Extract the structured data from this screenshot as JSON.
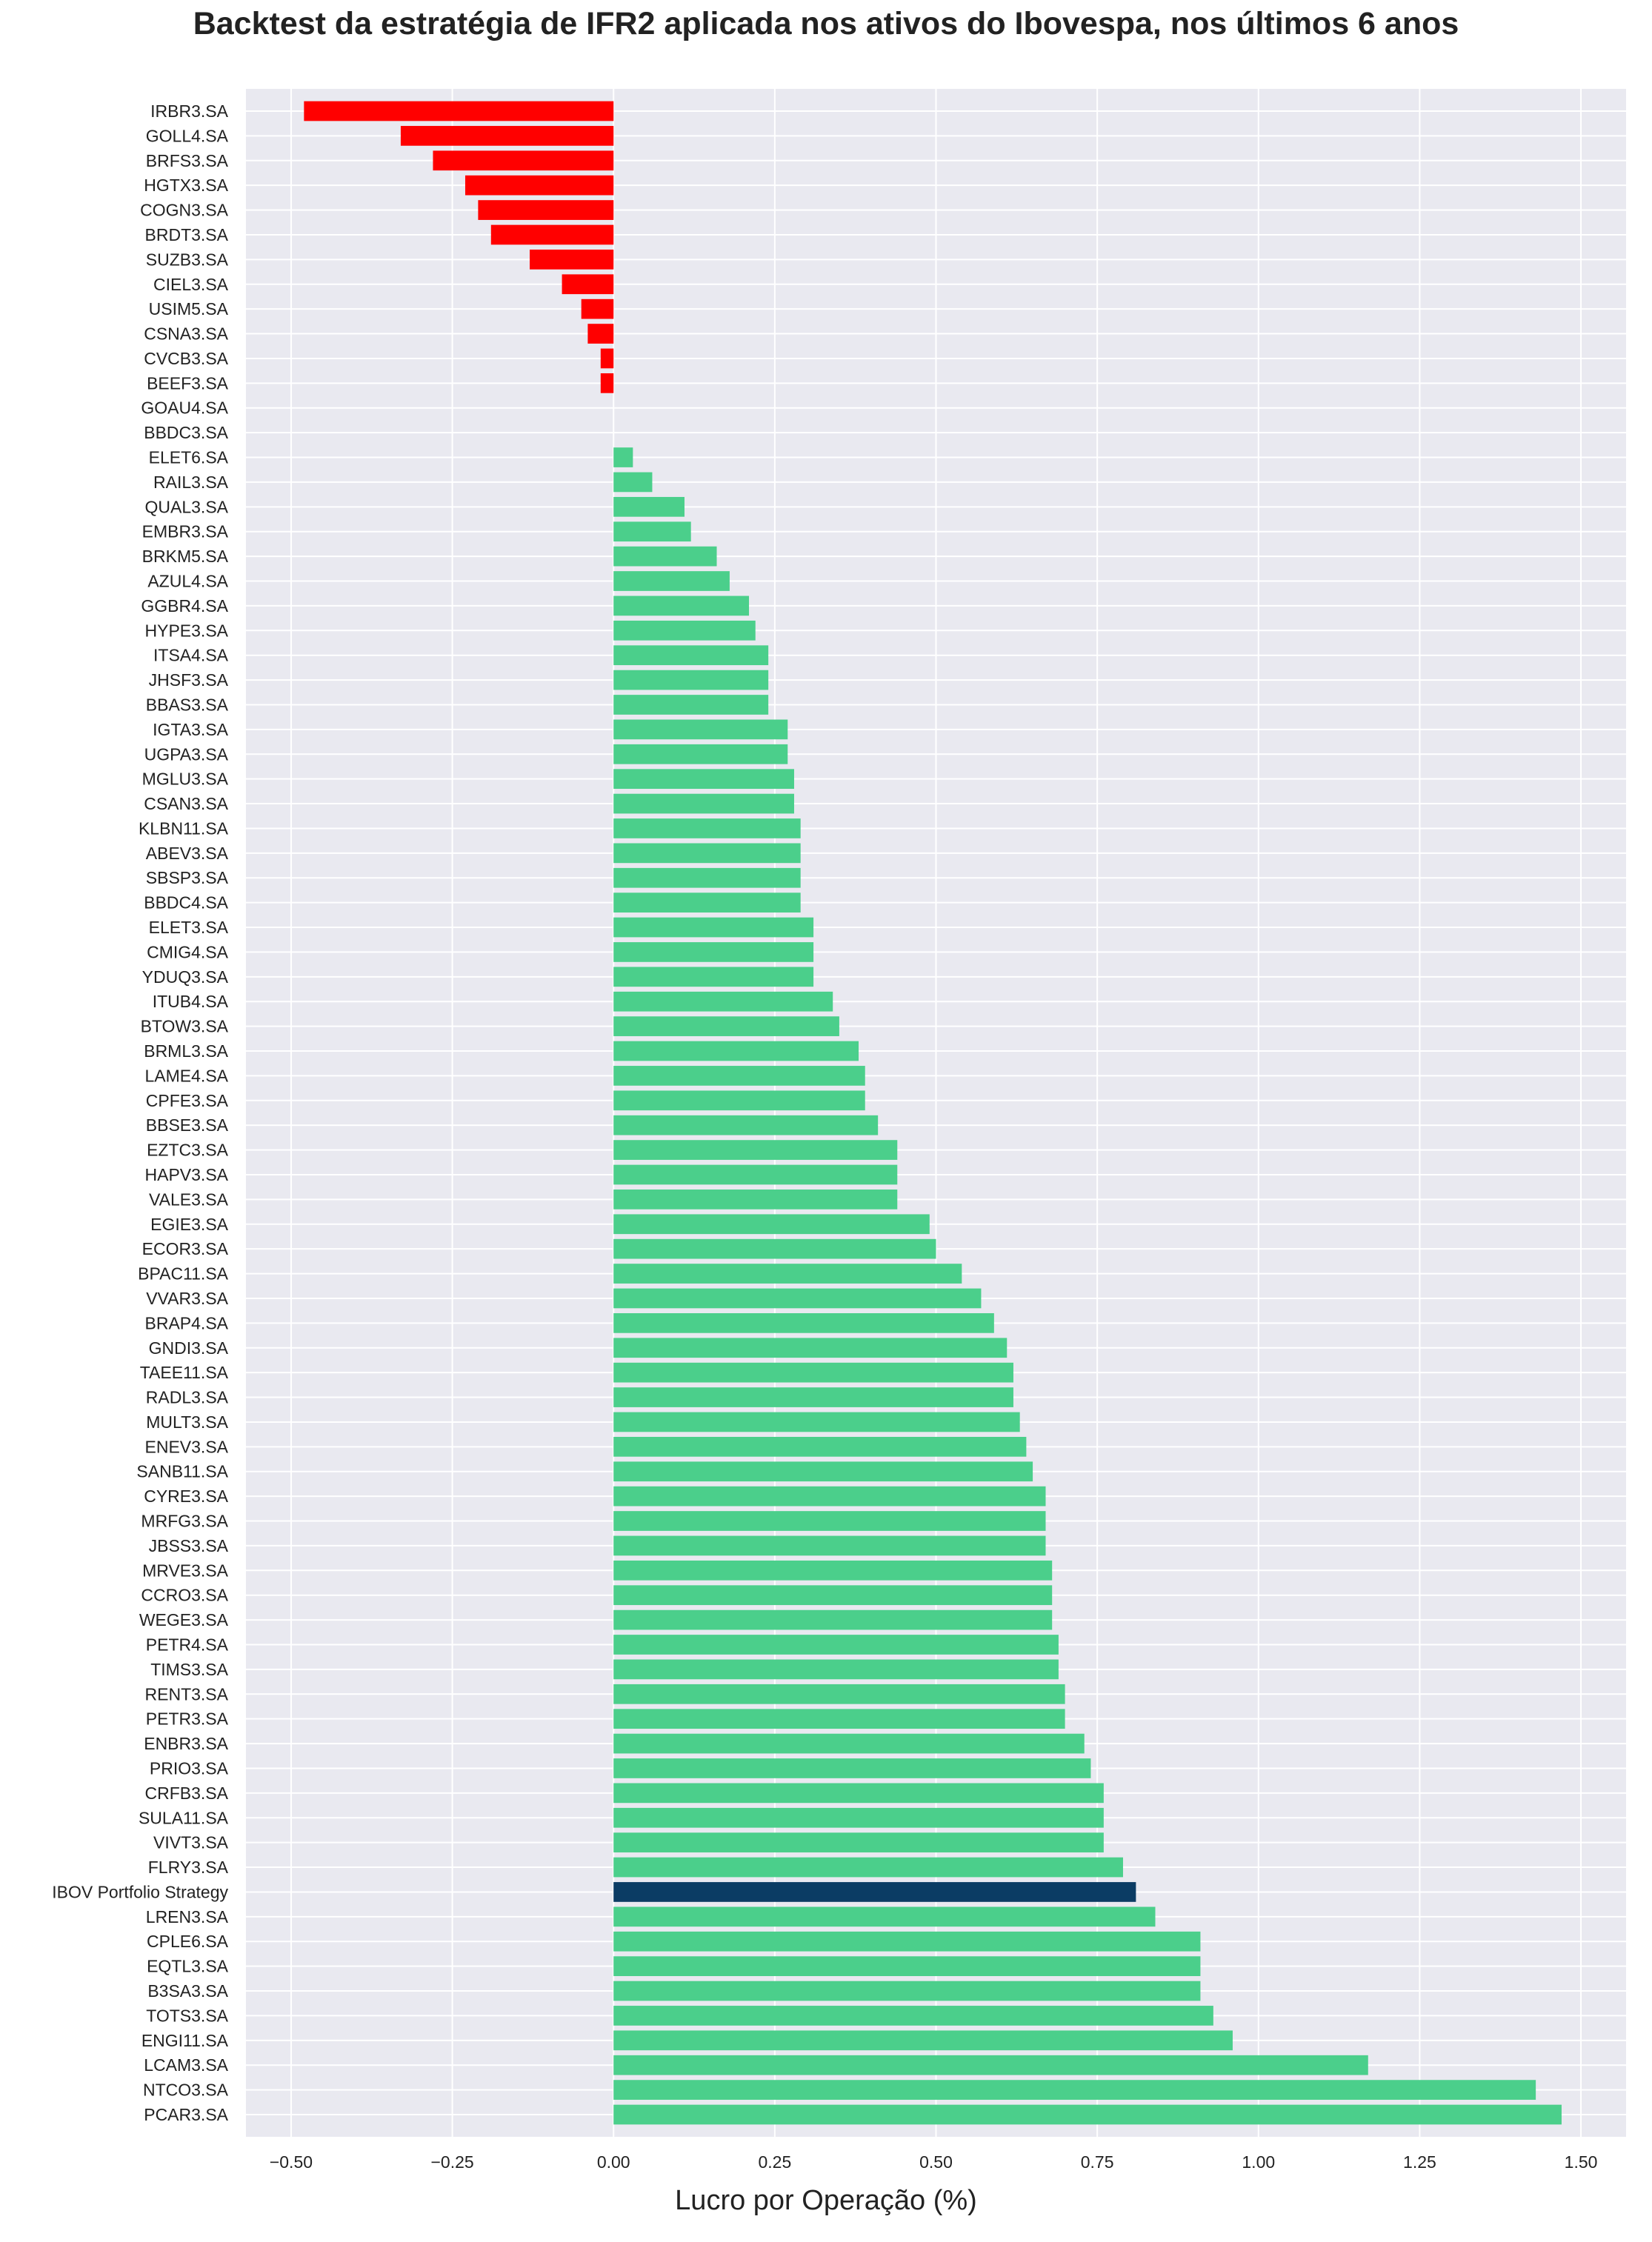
{
  "chart_data": {
    "type": "bar",
    "orientation": "horizontal",
    "title": "Backtest da estratégia de IFR2 aplicada nos ativos do Ibovespa, nos últimos 6 anos",
    "xlabel": "Lucro por Operação (%)",
    "ylabel": "",
    "xlim": [
      -0.57,
      1.57
    ],
    "xticks": [
      -0.5,
      -0.25,
      0.0,
      0.25,
      0.5,
      0.75,
      1.0,
      1.25,
      1.5
    ],
    "xtick_labels": [
      "−0.50",
      "−0.25",
      "0.00",
      "0.25",
      "0.50",
      "0.75",
      "1.00",
      "1.25",
      "1.50"
    ],
    "grid": true,
    "legend": "none",
    "colors": {
      "positive": "#4bcf8b",
      "negative": "#ff0000",
      "highlight": "#0b3c64",
      "background": "#e9e9f0",
      "grid": "#ffffff"
    },
    "highlight_category": "IBOV Portfolio Strategy",
    "categories": [
      "IRBR3.SA",
      "GOLL4.SA",
      "BRFS3.SA",
      "HGTX3.SA",
      "COGN3.SA",
      "BRDT3.SA",
      "SUZB3.SA",
      "CIEL3.SA",
      "USIM5.SA",
      "CSNA3.SA",
      "CVCB3.SA",
      "BEEF3.SA",
      "GOAU4.SA",
      "BBDC3.SA",
      "ELET6.SA",
      "RAIL3.SA",
      "QUAL3.SA",
      "EMBR3.SA",
      "BRKM5.SA",
      "AZUL4.SA",
      "GGBR4.SA",
      "HYPE3.SA",
      "ITSA4.SA",
      "JHSF3.SA",
      "BBAS3.SA",
      "IGTA3.SA",
      "UGPA3.SA",
      "MGLU3.SA",
      "CSAN3.SA",
      "KLBN11.SA",
      "ABEV3.SA",
      "SBSP3.SA",
      "BBDC4.SA",
      "ELET3.SA",
      "CMIG4.SA",
      "YDUQ3.SA",
      "ITUB4.SA",
      "BTOW3.SA",
      "BRML3.SA",
      "LAME4.SA",
      "CPFE3.SA",
      "BBSE3.SA",
      "EZTC3.SA",
      "HAPV3.SA",
      "VALE3.SA",
      "EGIE3.SA",
      "ECOR3.SA",
      "BPAC11.SA",
      "VVAR3.SA",
      "BRAP4.SA",
      "GNDI3.SA",
      "TAEE11.SA",
      "RADL3.SA",
      "MULT3.SA",
      "ENEV3.SA",
      "SANB11.SA",
      "CYRE3.SA",
      "MRFG3.SA",
      "JBSS3.SA",
      "MRVE3.SA",
      "CCRO3.SA",
      "WEGE3.SA",
      "PETR4.SA",
      "TIMS3.SA",
      "RENT3.SA",
      "PETR3.SA",
      "ENBR3.SA",
      "PRIO3.SA",
      "CRFB3.SA",
      "SULA11.SA",
      "VIVT3.SA",
      "FLRY3.SA",
      "IBOV Portfolio Strategy",
      "LREN3.SA",
      "CPLE6.SA",
      "EQTL3.SA",
      "B3SA3.SA",
      "TOTS3.SA",
      "ENGI11.SA",
      "LCAM3.SA",
      "NTCO3.SA",
      "PCAR3.SA"
    ],
    "values": [
      -0.48,
      -0.33,
      -0.28,
      -0.23,
      -0.21,
      -0.19,
      -0.13,
      -0.08,
      -0.05,
      -0.04,
      -0.02,
      -0.02,
      0.0,
      0.0,
      0.03,
      0.06,
      0.11,
      0.12,
      0.16,
      0.18,
      0.21,
      0.22,
      0.24,
      0.24,
      0.24,
      0.27,
      0.27,
      0.28,
      0.28,
      0.29,
      0.29,
      0.29,
      0.29,
      0.31,
      0.31,
      0.31,
      0.34,
      0.35,
      0.38,
      0.39,
      0.39,
      0.41,
      0.44,
      0.44,
      0.44,
      0.49,
      0.5,
      0.54,
      0.57,
      0.59,
      0.61,
      0.62,
      0.62,
      0.63,
      0.64,
      0.65,
      0.67,
      0.67,
      0.67,
      0.68,
      0.68,
      0.68,
      0.69,
      0.69,
      0.7,
      0.7,
      0.73,
      0.74,
      0.76,
      0.76,
      0.76,
      0.79,
      0.81,
      0.84,
      0.91,
      0.91,
      0.91,
      0.93,
      0.96,
      1.17,
      1.43,
      1.47
    ]
  }
}
